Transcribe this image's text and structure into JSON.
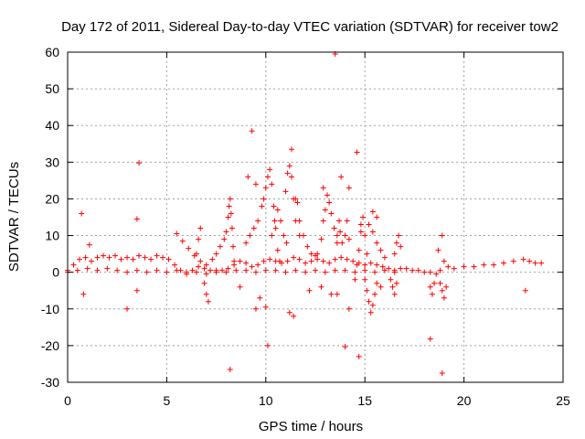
{
  "chart_data": {
    "type": "scatter",
    "title": "Day 172 of 2011, Sidereal Day-to-day VTEC variation (SDTVAR) for receiver tow2",
    "xlabel": "GPS time / hours",
    "ylabel": "SDTVAR / TECUs",
    "xlim": [
      0,
      25
    ],
    "ylim": [
      -30,
      60
    ],
    "xticks": [
      0,
      5,
      10,
      15,
      20,
      25
    ],
    "xtick_labels": [
      "0",
      "5",
      "10",
      "15",
      "20",
      "25"
    ],
    "yticks": [
      -30,
      -20,
      -10,
      0,
      10,
      20,
      30,
      40,
      50,
      60
    ],
    "ytick_labels": [
      "-30",
      "-20",
      "-10",
      "0",
      "10",
      "20",
      "30",
      "40",
      "50",
      "60"
    ],
    "grid": true,
    "marker": "+",
    "series": [
      {
        "name": "SDTVAR",
        "color": "#ff0000",
        "points": [
          [
            0.0,
            0.5
          ],
          [
            0.3,
            2.0
          ],
          [
            0.6,
            3.5
          ],
          [
            0.9,
            4.0
          ],
          [
            1.2,
            3.0
          ],
          [
            1.5,
            4.0
          ],
          [
            1.8,
            4.5
          ],
          [
            2.1,
            4.0
          ],
          [
            2.4,
            4.5
          ],
          [
            2.7,
            3.5
          ],
          [
            3.0,
            4.0
          ],
          [
            3.3,
            3.5
          ],
          [
            3.6,
            4.5
          ],
          [
            3.9,
            4.0
          ],
          [
            4.2,
            3.5
          ],
          [
            4.5,
            4.5
          ],
          [
            4.8,
            4.0
          ],
          [
            5.1,
            3.5
          ],
          [
            5.4,
            2.0
          ],
          [
            5.7,
            0.5
          ],
          [
            6.0,
            0.0
          ],
          [
            6.3,
            0.5
          ],
          [
            6.6,
            1.5
          ],
          [
            6.9,
            1.0
          ],
          [
            7.2,
            0.5
          ],
          [
            7.5,
            0.0
          ],
          [
            7.8,
            0.5
          ],
          [
            8.1,
            1.0
          ],
          [
            8.4,
            2.0
          ],
          [
            8.7,
            3.0
          ],
          [
            9.0,
            2.5
          ],
          [
            9.3,
            1.5
          ],
          [
            9.6,
            2.0
          ],
          [
            9.9,
            3.0
          ],
          [
            10.2,
            3.5
          ],
          [
            10.5,
            3.0
          ],
          [
            10.8,
            2.5
          ],
          [
            11.1,
            3.0
          ],
          [
            11.4,
            4.0
          ],
          [
            11.7,
            3.5
          ],
          [
            12.0,
            2.5
          ],
          [
            12.3,
            3.0
          ],
          [
            12.6,
            3.5
          ],
          [
            12.9,
            3.0
          ],
          [
            13.2,
            2.5
          ],
          [
            13.5,
            3.5
          ],
          [
            13.8,
            4.0
          ],
          [
            14.1,
            3.5
          ],
          [
            14.4,
            3.0
          ],
          [
            14.7,
            2.5
          ],
          [
            15.0,
            2.0
          ],
          [
            15.3,
            2.5
          ],
          [
            15.6,
            2.0
          ],
          [
            15.9,
            1.5
          ],
          [
            16.2,
            1.0
          ],
          [
            16.5,
            0.5
          ],
          [
            16.8,
            1.0
          ],
          [
            17.1,
            1.0
          ],
          [
            17.4,
            0.5
          ],
          [
            17.7,
            0.5
          ],
          [
            18.0,
            0.0
          ],
          [
            18.3,
            0.0
          ],
          [
            18.6,
            -0.5
          ],
          [
            18.8,
            0.5
          ],
          [
            19.0,
            3.0
          ],
          [
            19.2,
            1.5
          ],
          [
            19.5,
            1.0
          ],
          [
            20.0,
            1.5
          ],
          [
            20.5,
            1.5
          ],
          [
            21.0,
            2.0
          ],
          [
            21.5,
            2.0
          ],
          [
            22.0,
            2.5
          ],
          [
            22.5,
            3.0
          ],
          [
            23.0,
            3.5
          ],
          [
            23.3,
            3.0
          ],
          [
            23.6,
            2.5
          ],
          [
            23.9,
            2.5
          ],
          [
            0.0,
            0.0
          ],
          [
            0.5,
            0.5
          ],
          [
            1.0,
            1.0
          ],
          [
            1.5,
            0.5
          ],
          [
            2.0,
            1.0
          ],
          [
            2.5,
            0.5
          ],
          [
            3.0,
            0.0
          ],
          [
            3.5,
            0.5
          ],
          [
            4.0,
            0.0
          ],
          [
            4.5,
            0.5
          ],
          [
            5.0,
            0.0
          ],
          [
            5.5,
            0.5
          ],
          [
            6.0,
            -0.5
          ],
          [
            6.5,
            0.0
          ],
          [
            7.0,
            -0.5
          ],
          [
            7.5,
            0.5
          ],
          [
            8.0,
            0.0
          ],
          [
            8.5,
            0.5
          ],
          [
            9.0,
            0.5
          ],
          [
            9.5,
            0.0
          ],
          [
            10.0,
            0.5
          ],
          [
            10.5,
            0.5
          ],
          [
            11.0,
            0.0
          ],
          [
            11.5,
            0.5
          ],
          [
            12.0,
            0.0
          ],
          [
            12.5,
            0.5
          ],
          [
            13.0,
            0.0
          ],
          [
            13.5,
            0.5
          ],
          [
            14.0,
            0.5
          ],
          [
            14.5,
            0.0
          ],
          [
            15.0,
            0.5
          ],
          [
            15.5,
            0.0
          ],
          [
            16.0,
            0.5
          ],
          [
            16.5,
            0.0
          ],
          [
            5.5,
            10.5
          ],
          [
            5.8,
            8.5
          ],
          [
            6.1,
            6.5
          ],
          [
            6.4,
            4.5
          ],
          [
            6.7,
            3.0
          ],
          [
            7.0,
            2.0
          ],
          [
            7.3,
            3.5
          ],
          [
            7.5,
            5.0
          ],
          [
            7.7,
            7.0
          ],
          [
            7.9,
            9.0
          ],
          [
            8.0,
            11.0
          ],
          [
            8.1,
            15.0
          ],
          [
            8.15,
            18.0
          ],
          [
            8.2,
            20.0
          ],
          [
            8.25,
            16.0
          ],
          [
            8.3,
            12.0
          ],
          [
            8.35,
            7.0
          ],
          [
            8.4,
            3.0
          ],
          [
            9.0,
            8.0
          ],
          [
            9.2,
            10.0
          ],
          [
            9.4,
            12.0
          ],
          [
            9.6,
            14.0
          ],
          [
            9.8,
            18.0
          ],
          [
            9.9,
            20.0
          ],
          [
            10.0,
            23.0
          ],
          [
            10.1,
            26.0
          ],
          [
            10.2,
            28.0
          ],
          [
            10.3,
            24.0
          ],
          [
            10.4,
            18.0
          ],
          [
            10.5,
            12.0
          ],
          [
            10.6,
            6.0
          ],
          [
            10.7,
            3.0
          ],
          [
            10.3,
            10.0
          ],
          [
            10.45,
            14.0
          ],
          [
            10.6,
            17.0
          ],
          [
            10.75,
            14.0
          ],
          [
            10.9,
            10.0
          ],
          [
            11.05,
            8.0
          ],
          [
            11.0,
            22.0
          ],
          [
            11.1,
            27.0
          ],
          [
            11.2,
            29.0
          ],
          [
            11.3,
            26.0
          ],
          [
            11.4,
            20.0
          ],
          [
            11.5,
            14.0
          ],
          [
            11.7,
            10.0
          ],
          [
            11.5,
            20.0
          ],
          [
            11.6,
            19.0
          ],
          [
            11.7,
            14.0
          ],
          [
            11.9,
            10.0
          ],
          [
            12.1,
            7.0
          ],
          [
            12.3,
            5.0
          ],
          [
            12.5,
            4.5
          ],
          [
            12.6,
            5.0
          ],
          [
            12.8,
            9.0
          ],
          [
            12.9,
            14.0
          ],
          [
            13.0,
            17.0
          ],
          [
            13.1,
            21.0
          ],
          [
            13.2,
            19.0
          ],
          [
            13.3,
            16.0
          ],
          [
            13.45,
            12.0
          ],
          [
            13.6,
            8.0
          ],
          [
            13.6,
            10.0
          ],
          [
            13.7,
            14.0
          ],
          [
            13.75,
            11.0
          ],
          [
            13.85,
            8.0
          ],
          [
            14.0,
            10.0
          ],
          [
            14.1,
            14.0
          ],
          [
            14.2,
            9.0
          ],
          [
            14.6,
            2.0
          ],
          [
            14.7,
            6.0
          ],
          [
            14.8,
            11.0
          ],
          [
            14.9,
            15.0
          ],
          [
            15.0,
            10.0
          ],
          [
            15.1,
            5.0
          ],
          [
            15.2,
            13.0
          ],
          [
            15.4,
            11.0
          ],
          [
            15.6,
            8.0
          ],
          [
            15.8,
            6.0
          ],
          [
            16.0,
            4.0
          ],
          [
            15.0,
            -2.0
          ],
          [
            15.1,
            -5.0
          ],
          [
            15.2,
            -8.0
          ],
          [
            15.3,
            -11.0
          ],
          [
            15.4,
            -9.0
          ],
          [
            15.5,
            -6.0
          ],
          [
            15.6,
            -3.0
          ],
          [
            15.8,
            -4.0
          ],
          [
            16.3,
            -2.0
          ],
          [
            16.4,
            -4.0
          ],
          [
            16.5,
            -6.0
          ],
          [
            16.6,
            -3.0
          ],
          [
            16.5,
            5.0
          ],
          [
            16.6,
            8.0
          ],
          [
            16.7,
            10.0
          ],
          [
            16.8,
            7.0
          ],
          [
            18.3,
            -4.0
          ],
          [
            18.4,
            -6.0
          ],
          [
            18.5,
            -3.0
          ],
          [
            18.8,
            -3.0
          ],
          [
            18.9,
            -5.0
          ],
          [
            19.0,
            -7.0
          ],
          [
            19.1,
            -4.0
          ],
          [
            6.9,
            -3.0
          ],
          [
            7.0,
            -6.0
          ],
          [
            7.1,
            -8.0
          ],
          [
            6.5,
            5.0
          ],
          [
            6.6,
            9.0
          ],
          [
            6.7,
            12.0
          ],
          [
            9.3,
            38.5
          ],
          [
            13.5,
            59.5
          ],
          [
            3.6,
            29.8
          ],
          [
            14.6,
            32.7
          ],
          [
            11.3,
            33.5
          ],
          [
            0.7,
            16.0
          ],
          [
            1.1,
            7.5
          ],
          [
            3.5,
            14.5
          ],
          [
            3.0,
            -10.0
          ],
          [
            0.8,
            -6.0
          ],
          [
            3.5,
            -5.0
          ],
          [
            8.2,
            -26.5
          ],
          [
            10.1,
            -20.0
          ],
          [
            14.0,
            -20.3
          ],
          [
            14.7,
            -23.0
          ],
          [
            18.3,
            -18.2
          ],
          [
            18.9,
            -27.5
          ],
          [
            9.5,
            -10.0
          ],
          [
            10.0,
            -9.5
          ],
          [
            11.2,
            -11.0
          ],
          [
            11.4,
            -12.0
          ],
          [
            12.2,
            -5.0
          ],
          [
            13.6,
            -6.0
          ],
          [
            14.2,
            -10.0
          ],
          [
            9.1,
            26.0
          ],
          [
            9.5,
            24.0
          ],
          [
            12.9,
            23.0
          ],
          [
            13.8,
            26.0
          ],
          [
            14.2,
            23.0
          ],
          [
            15.4,
            16.5
          ],
          [
            15.6,
            15.0
          ],
          [
            14.8,
            13.0
          ],
          [
            8.7,
            -4.0
          ],
          [
            9.7,
            -7.0
          ],
          [
            12.8,
            -4.0
          ],
          [
            13.3,
            -6.0
          ],
          [
            14.5,
            -2.0
          ],
          [
            23.1,
            -5.0
          ],
          [
            18.9,
            10.0
          ],
          [
            18.7,
            6.0
          ]
        ]
      }
    ]
  }
}
